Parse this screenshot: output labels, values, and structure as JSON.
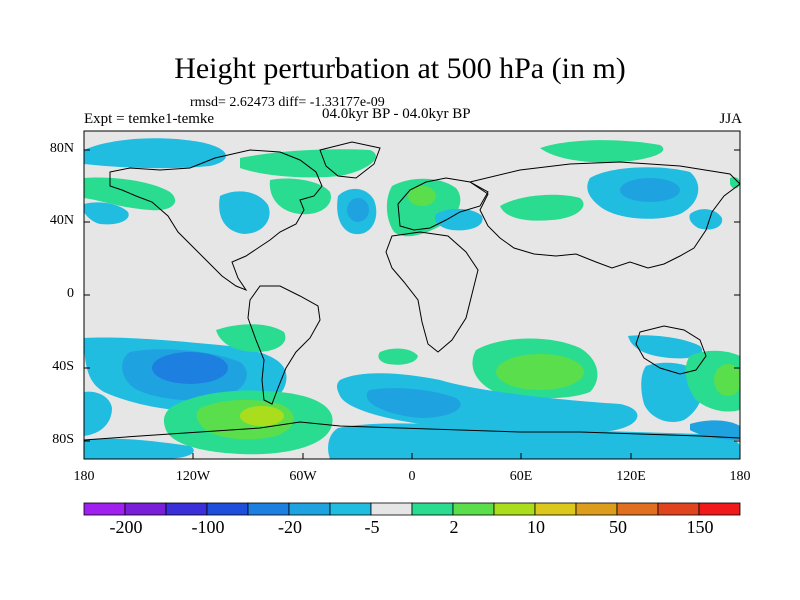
{
  "header": {
    "title": "Height perturbation at 500 hPa (in m)",
    "stats": "rmsd= 2.62473 diff= -1.33177e-09",
    "left_label": "Expt = temke1-temke",
    "center_label": "04.0kyr BP - 04.0kyr BP",
    "right_label": "JJA"
  },
  "axes": {
    "lat_labels": [
      "80N",
      "40N",
      "0",
      "40S",
      "80S"
    ],
    "lon_labels": [
      "180",
      "120W",
      "60W",
      "0",
      "60E",
      "120E",
      "180"
    ]
  },
  "colorbar": {
    "colors": [
      "#a020f0",
      "#7a1fd8",
      "#3a2fd8",
      "#1d4fdc",
      "#1d7fdf",
      "#1fa3e0",
      "#21bde0",
      "#e6e6e6",
      "#2adc8f",
      "#5ade4c",
      "#aade1d",
      "#dcc81d",
      "#dc9d1d",
      "#e0701f",
      "#e0441f",
      "#f01a1a"
    ],
    "labels": [
      "-200",
      "-100",
      "-20",
      "-5",
      "2",
      "10",
      "50",
      "150"
    ]
  },
  "map_style": {
    "background": "#e6e6e6",
    "coast": "#000000"
  }
}
